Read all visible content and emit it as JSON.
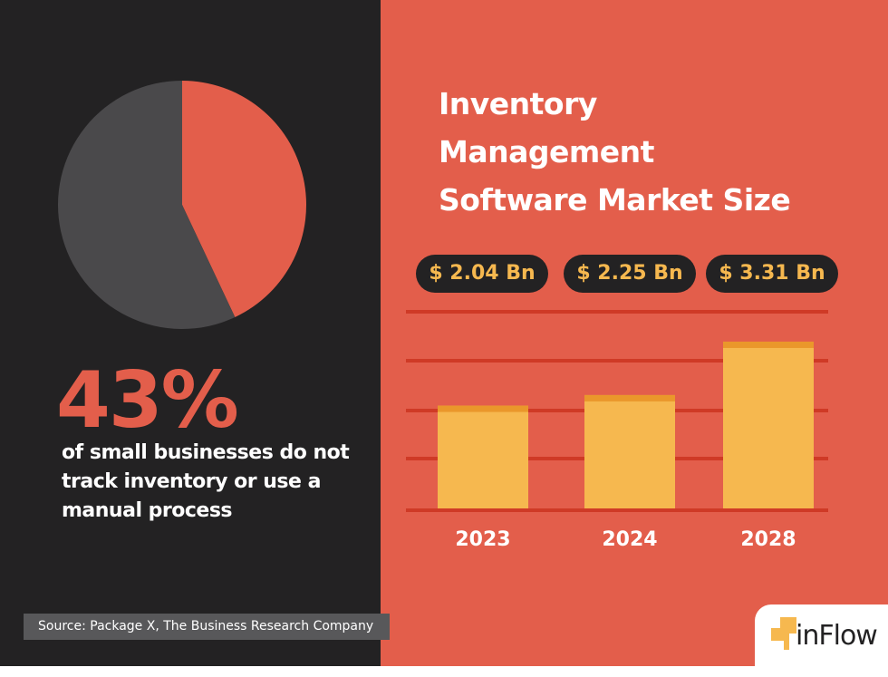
{
  "left": {
    "stat": "43%",
    "description": "of small businesses do not track inventory or use a manual process",
    "source": "Source: Package X, The Business Research Company"
  },
  "right": {
    "title_lines": [
      "Inventory",
      "Management",
      "Software Market Size"
    ]
  },
  "logo": {
    "text": "inFlow"
  },
  "colors": {
    "dark": "#232223",
    "accent": "#e35e4b",
    "gray": "#4a494b",
    "bar": "#f6b84f",
    "bar_top": "#ea972b",
    "grid": "#cf3a26"
  },
  "chart_data": [
    {
      "type": "pie",
      "values": [
        43,
        57
      ],
      "colors": [
        "#e35e4b",
        "#4a494b"
      ]
    },
    {
      "type": "bar",
      "title": "Inventory Management Software Market Size",
      "categories": [
        "2023",
        "2024",
        "2028"
      ],
      "values": [
        2.04,
        2.25,
        3.31
      ],
      "data_labels": [
        "$ 2.04 Bn",
        "$ 2.25 Bn",
        "$ 3.31 Bn"
      ],
      "unit": "Bn USD",
      "grid": true
    }
  ]
}
